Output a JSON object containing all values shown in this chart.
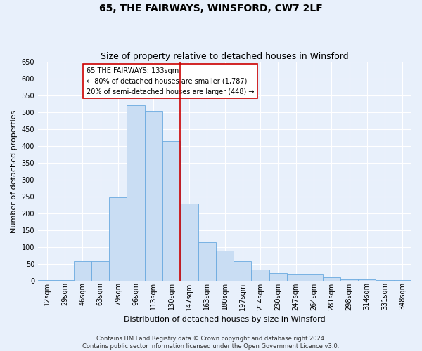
{
  "title": "65, THE FAIRWAYS, WINSFORD, CW7 2LF",
  "subtitle": "Size of property relative to detached houses in Winsford",
  "xlabel": "Distribution of detached houses by size in Winsford",
  "ylabel": "Number of detached properties",
  "bar_labels": [
    "12sqm",
    "29sqm",
    "46sqm",
    "63sqm",
    "79sqm",
    "96sqm",
    "113sqm",
    "130sqm",
    "147sqm",
    "163sqm",
    "180sqm",
    "197sqm",
    "214sqm",
    "230sqm",
    "247sqm",
    "264sqm",
    "281sqm",
    "298sqm",
    "314sqm",
    "331sqm",
    "348sqm"
  ],
  "bar_values": [
    2,
    2,
    58,
    58,
    248,
    520,
    505,
    415,
    228,
    113,
    88,
    58,
    33,
    22,
    18,
    18,
    9,
    4,
    3,
    2,
    2
  ],
  "bar_color": "#c9ddf3",
  "bar_edge_color": "#6aaae0",
  "ylim": [
    0,
    650
  ],
  "yticks": [
    0,
    50,
    100,
    150,
    200,
    250,
    300,
    350,
    400,
    450,
    500,
    550,
    600,
    650
  ],
  "property_label": "65 THE FAIRWAYS: 133sqm",
  "annotation_line1": "← 80% of detached houses are smaller (1,787)",
  "annotation_line2": "20% of semi-detached houses are larger (448) →",
  "vline_color": "#cc0000",
  "vline_position": 7.5,
  "footer_line1": "Contains HM Land Registry data © Crown copyright and database right 2024.",
  "footer_line2": "Contains public sector information licensed under the Open Government Licence v3.0.",
  "background_color": "#e8f0fb",
  "plot_background": "#e8f0fb",
  "grid_color": "#ffffff",
  "title_fontsize": 10,
  "subtitle_fontsize": 9,
  "axis_label_fontsize": 8,
  "tick_fontsize": 7,
  "footer_fontsize": 6
}
